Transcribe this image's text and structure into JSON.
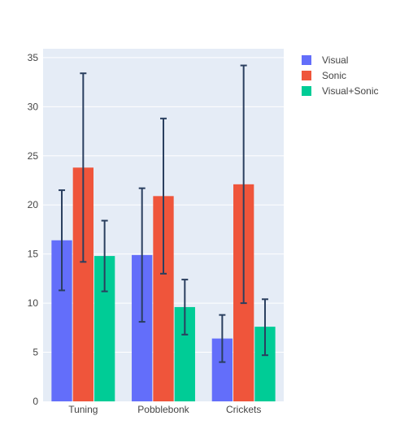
{
  "chart_data": {
    "type": "bar",
    "categories": [
      "Tuning",
      "Pobblebonk",
      "Crickets"
    ],
    "series": [
      {
        "name": "Visual",
        "color": "#636efa",
        "values": [
          16.4,
          14.9,
          6.4
        ],
        "error": [
          [
            11.3,
            21.5
          ],
          [
            8.1,
            21.7
          ],
          [
            4.0,
            8.8
          ]
        ]
      },
      {
        "name": "Sonic",
        "color": "#ef553b",
        "values": [
          23.8,
          20.9,
          22.1
        ],
        "error": [
          [
            14.2,
            33.4
          ],
          [
            13.0,
            28.8
          ],
          [
            10.0,
            34.2
          ]
        ]
      },
      {
        "name": "Visual+Sonic",
        "color": "#00cc96",
        "values": [
          14.8,
          9.6,
          7.6
        ],
        "error": [
          [
            11.2,
            18.4
          ],
          [
            6.8,
            12.4
          ],
          [
            4.7,
            10.4
          ]
        ]
      }
    ],
    "ylim": [
      0,
      35.9
    ],
    "yticks": [
      "0",
      "5",
      "10",
      "15",
      "20",
      "25",
      "30",
      "35"
    ],
    "grid": true,
    "legend": "top-right",
    "plot_bgcolor": "#e5ecf6",
    "error_bar_color": "#2a3f5f"
  }
}
